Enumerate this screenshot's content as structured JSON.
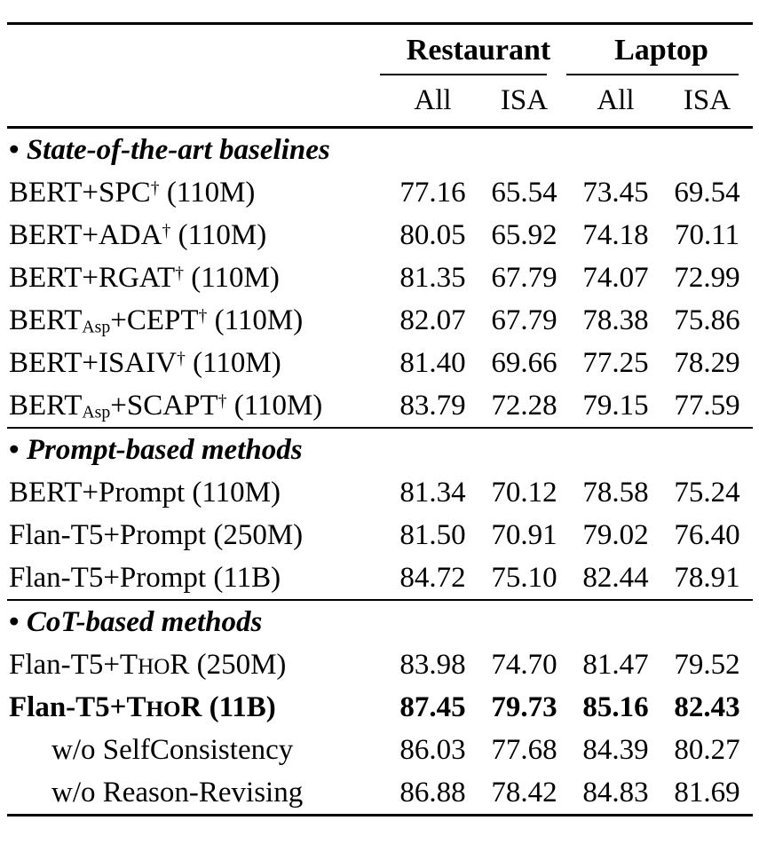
{
  "table": {
    "groups": [
      "Restaurant",
      "Laptop"
    ],
    "sub_headers": [
      "All",
      "ISA",
      "All",
      "ISA"
    ],
    "sections": [
      {
        "bullet": "•",
        "title": "State-of-the-art baselines",
        "rows": [
          {
            "label_parts": [
              {
                "text": "BERT+SPC"
              },
              {
                "text": "†",
                "style": "sup"
              },
              {
                "text": " (110M)"
              }
            ],
            "values": [
              "77.16",
              "65.54",
              "73.45",
              "69.54"
            ],
            "bold": false,
            "indent": false
          },
          {
            "label_parts": [
              {
                "text": "BERT+ADA"
              },
              {
                "text": "†",
                "style": "sup"
              },
              {
                "text": " (110M)"
              }
            ],
            "values": [
              "80.05",
              "65.92",
              "74.18",
              "70.11"
            ],
            "bold": false,
            "indent": false
          },
          {
            "label_parts": [
              {
                "text": "BERT+RGAT"
              },
              {
                "text": "†",
                "style": "sup"
              },
              {
                "text": " (110M)"
              }
            ],
            "values": [
              "81.35",
              "67.79",
              "74.07",
              "72.99"
            ],
            "bold": false,
            "indent": false
          },
          {
            "label_parts": [
              {
                "text": "BERT"
              },
              {
                "text": "Asp",
                "style": "sub"
              },
              {
                "text": "+CEPT"
              },
              {
                "text": "†",
                "style": "sup"
              },
              {
                "text": " (110M)"
              }
            ],
            "values": [
              "82.07",
              "67.79",
              "78.38",
              "75.86"
            ],
            "bold": false,
            "indent": false
          },
          {
            "label_parts": [
              {
                "text": "BERT+ISAIV"
              },
              {
                "text": "†",
                "style": "sup"
              },
              {
                "text": " (110M)"
              }
            ],
            "values": [
              "81.40",
              "69.66",
              "77.25",
              "78.29"
            ],
            "bold": false,
            "indent": false
          },
          {
            "label_parts": [
              {
                "text": "BERT"
              },
              {
                "text": "Asp",
                "style": "sub"
              },
              {
                "text": "+SCAPT"
              },
              {
                "text": "†",
                "style": "sup"
              },
              {
                "text": " (110M)"
              }
            ],
            "values": [
              "83.79",
              "72.28",
              "79.15",
              "77.59"
            ],
            "bold": false,
            "indent": false
          }
        ]
      },
      {
        "bullet": "•",
        "title": "Prompt-based methods",
        "rows": [
          {
            "label_parts": [
              {
                "text": "BERT+Prompt (110M)"
              }
            ],
            "values": [
              "81.34",
              "70.12",
              "78.58",
              "75.24"
            ],
            "bold": false,
            "indent": false
          },
          {
            "label_parts": [
              {
                "text": "Flan-T5+Prompt (250M)"
              }
            ],
            "values": [
              "81.50",
              "70.91",
              "79.02",
              "76.40"
            ],
            "bold": false,
            "indent": false
          },
          {
            "label_parts": [
              {
                "text": "Flan-T5+Prompt (11B)"
              }
            ],
            "values": [
              "84.72",
              "75.10",
              "82.44",
              "78.91"
            ],
            "bold": false,
            "indent": false
          }
        ]
      },
      {
        "bullet": "•",
        "title": "CoT-based methods",
        "rows": [
          {
            "label_parts": [
              {
                "text": "Flan-T5+T"
              },
              {
                "text": "HO",
                "style": "smallcaps"
              },
              {
                "text": "R (250M)"
              }
            ],
            "values": [
              "83.98",
              "74.70",
              "81.47",
              "79.52"
            ],
            "bold": false,
            "indent": false
          },
          {
            "label_parts": [
              {
                "text": "Flan-T5+T"
              },
              {
                "text": "HO",
                "style": "smallcaps"
              },
              {
                "text": "R (11B)"
              }
            ],
            "values": [
              "87.45",
              "79.73",
              "85.16",
              "82.43"
            ],
            "bold": true,
            "indent": false
          },
          {
            "label_parts": [
              {
                "text": "w/o SelfConsistency"
              }
            ],
            "values": [
              "86.03",
              "77.68",
              "84.39",
              "80.27"
            ],
            "bold": false,
            "indent": true
          },
          {
            "label_parts": [
              {
                "text": "w/o Reason-Revising"
              }
            ],
            "values": [
              "86.88",
              "78.42",
              "84.83",
              "81.69"
            ],
            "bold": false,
            "indent": true
          }
        ]
      }
    ]
  }
}
